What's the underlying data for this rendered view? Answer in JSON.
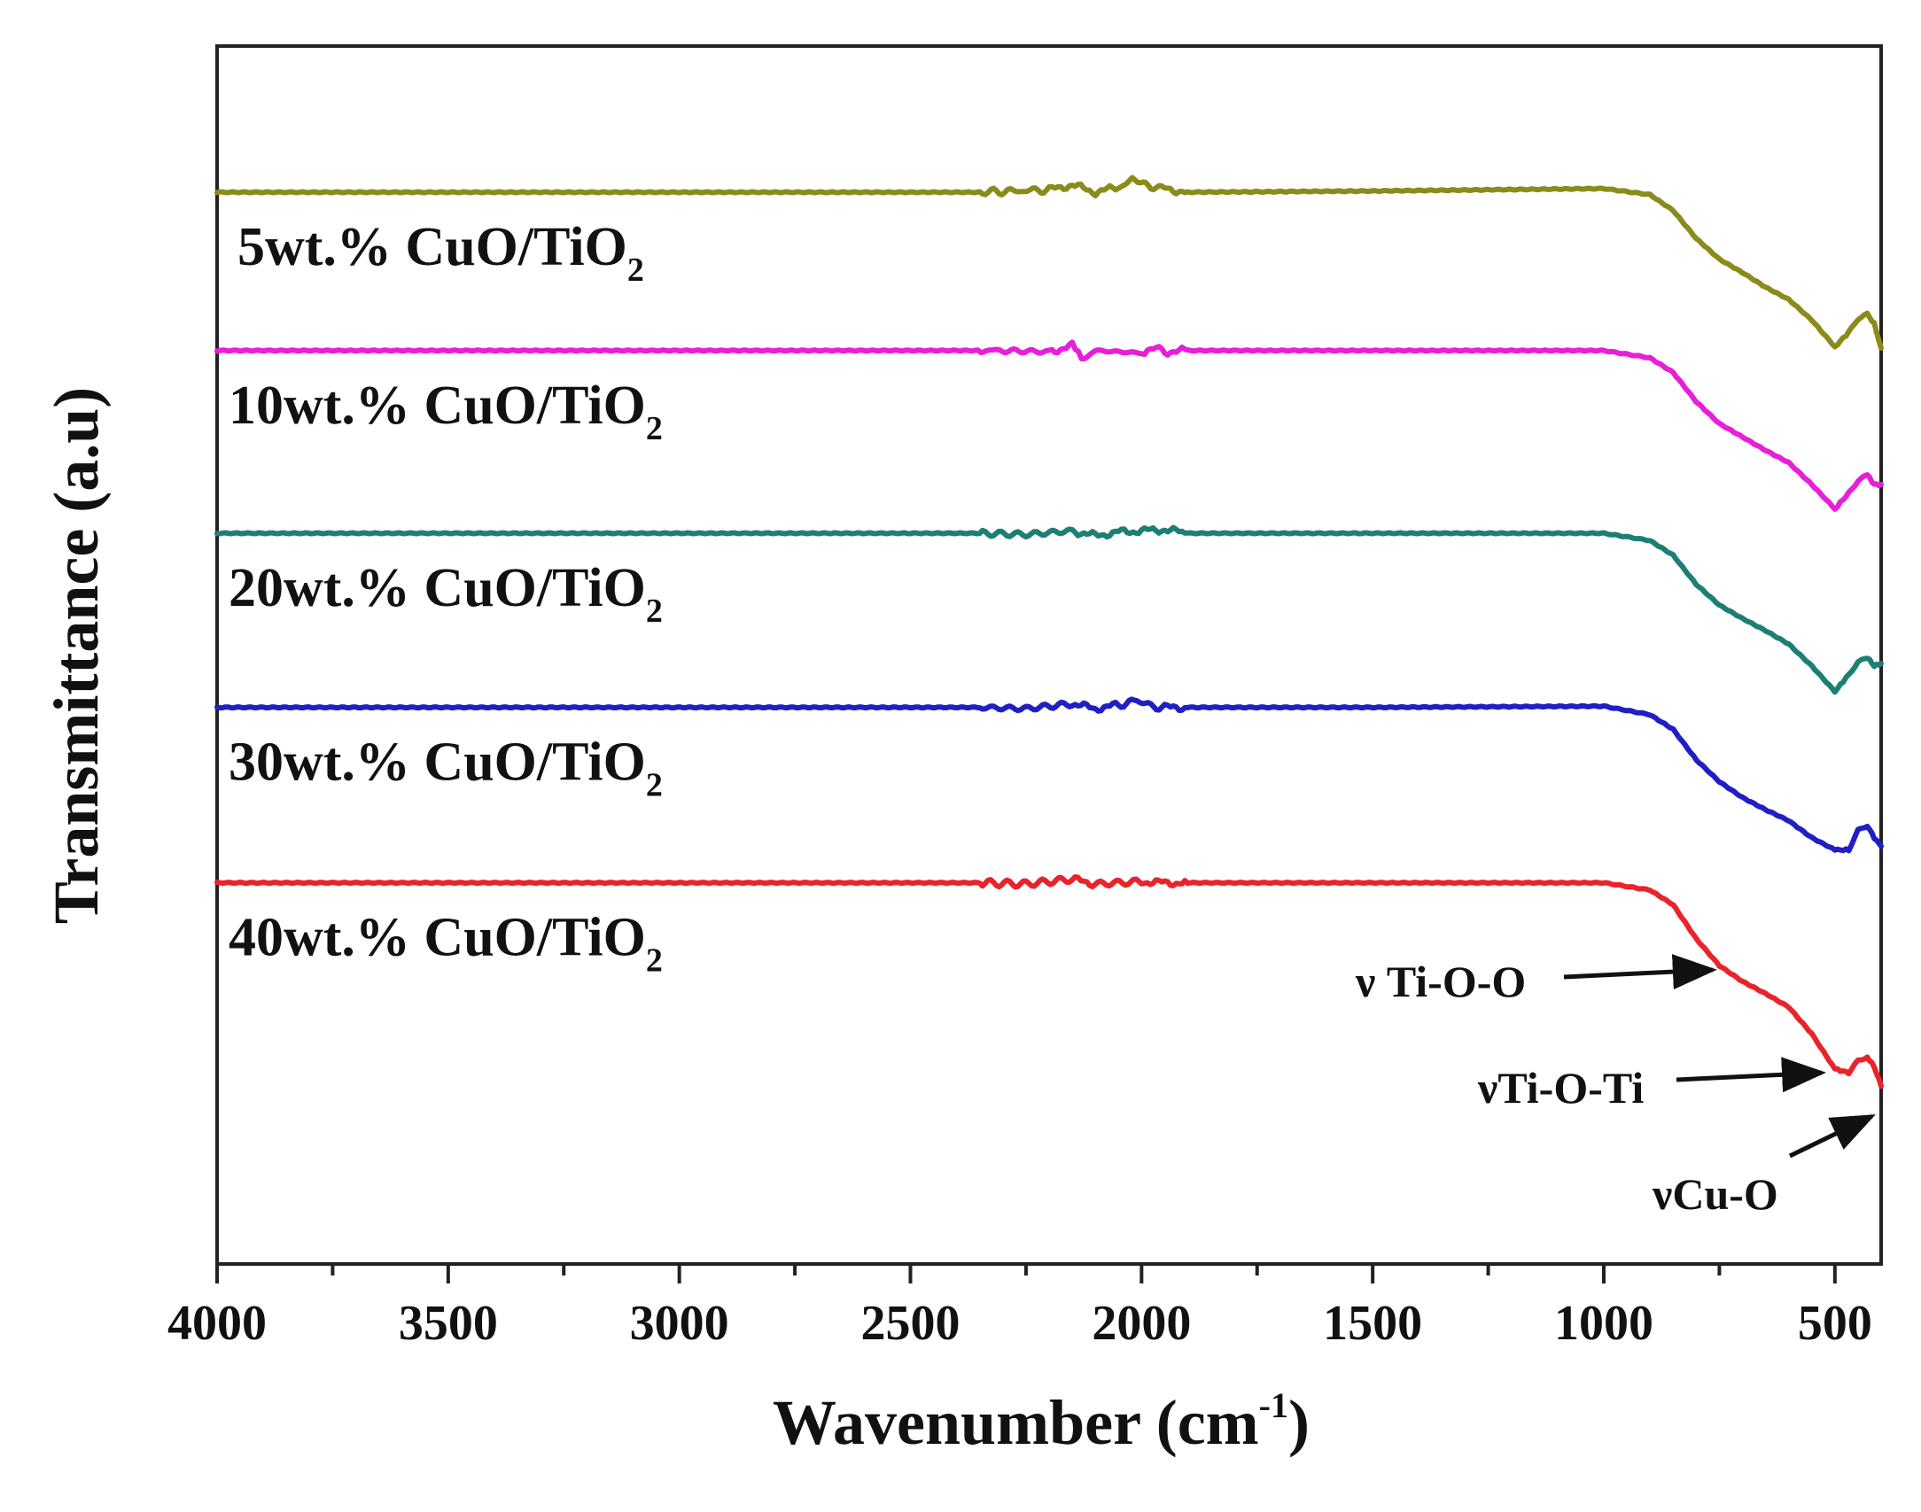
{
  "chart_data": {
    "type": "line",
    "title": "",
    "xlabel": "Wavenumber (cm",
    "xlabel_sup": "-1",
    "xlabel_close": ")",
    "ylabel": "Transmittance (a.u)",
    "xlim": [
      4000,
      400
    ],
    "x_reversed": true,
    "y_units": "arbitrary (stacked offsets)",
    "ylim": [
      0,
      100
    ],
    "grid": false,
    "x_ticks": [
      {
        "value": 4000,
        "label": "4000"
      },
      {
        "value": 3500,
        "label": "3500"
      },
      {
        "value": 3000,
        "label": "3000"
      },
      {
        "value": 2500,
        "label": "2500"
      },
      {
        "value": 2000,
        "label": "2000"
      },
      {
        "value": 1500,
        "label": "1500"
      },
      {
        "value": 1000,
        "label": "1000"
      },
      {
        "value": 500,
        "label": "500"
      }
    ],
    "x_minor_ticks": [
      3750,
      3250,
      2750,
      2250,
      1750,
      1250,
      750
    ],
    "series": [
      {
        "name": "5wt.% CuO/TiO2",
        "label_main": "5wt.% CuO/TiO",
        "label_sub": "2",
        "color": "#8b8b1c",
        "baseline": 88,
        "points": [
          [
            4000,
            88.0
          ],
          [
            3000,
            88.0
          ],
          [
            2350,
            88.0
          ],
          [
            2200,
            88.2
          ],
          [
            2150,
            88.6
          ],
          [
            2100,
            88.0
          ],
          [
            2050,
            88.4
          ],
          [
            2020,
            89.0
          ],
          [
            1980,
            88.5
          ],
          [
            1950,
            88.3
          ],
          [
            1900,
            88.0
          ],
          [
            1500,
            88.1
          ],
          [
            1000,
            88.3
          ],
          [
            900,
            87.8
          ],
          [
            850,
            86.5
          ],
          [
            800,
            84.2
          ],
          [
            750,
            82.5
          ],
          [
            700,
            81.4
          ],
          [
            650,
            80.2
          ],
          [
            600,
            79.2
          ],
          [
            550,
            77.5
          ],
          [
            500,
            75.3
          ],
          [
            470,
            76.5
          ],
          [
            450,
            77.6
          ],
          [
            430,
            78.0
          ],
          [
            415,
            77.2
          ],
          [
            400,
            75.2
          ]
        ]
      },
      {
        "name": "10wt.% CuO/TiO2",
        "label_main": "10wt.% CuO/TiO",
        "label_sub": "2",
        "color": "#e81ed8",
        "baseline": 75,
        "points": [
          [
            4000,
            75.0
          ],
          [
            3000,
            75.0
          ],
          [
            2300,
            75.0
          ],
          [
            2200,
            74.9
          ],
          [
            2150,
            75.4
          ],
          [
            2130,
            74.3
          ],
          [
            2100,
            75.0
          ],
          [
            2000,
            74.8
          ],
          [
            1980,
            75.3
          ],
          [
            1950,
            74.9
          ],
          [
            1900,
            75.0
          ],
          [
            1500,
            75.0
          ],
          [
            1000,
            75.0
          ],
          [
            900,
            74.4
          ],
          [
            850,
            73.2
          ],
          [
            800,
            70.8
          ],
          [
            750,
            69.0
          ],
          [
            700,
            67.9
          ],
          [
            650,
            66.8
          ],
          [
            600,
            65.8
          ],
          [
            550,
            64.0
          ],
          [
            500,
            62.0
          ],
          [
            470,
            63.3
          ],
          [
            450,
            64.3
          ],
          [
            430,
            64.8
          ],
          [
            415,
            64.0
          ],
          [
            400,
            64.0
          ]
        ]
      },
      {
        "name": "20wt.% CuO/TiO2",
        "label_main": "20wt.% CuO/TiO",
        "label_sub": "2",
        "color": "#1d7f74",
        "baseline": 60,
        "points": [
          [
            4000,
            60.0
          ],
          [
            3000,
            60.0
          ],
          [
            2350,
            60.0
          ],
          [
            2250,
            59.9
          ],
          [
            2150,
            60.2
          ],
          [
            2100,
            59.8
          ],
          [
            2050,
            60.1
          ],
          [
            2000,
            60.2
          ],
          [
            1950,
            60.3
          ],
          [
            1900,
            60.0
          ],
          [
            1500,
            60.0
          ],
          [
            1000,
            60.0
          ],
          [
            900,
            59.4
          ],
          [
            850,
            58.2
          ],
          [
            800,
            55.8
          ],
          [
            750,
            54.1
          ],
          [
            700,
            53.0
          ],
          [
            650,
            52.0
          ],
          [
            600,
            50.9
          ],
          [
            550,
            49.1
          ],
          [
            500,
            47.0
          ],
          [
            470,
            48.4
          ],
          [
            450,
            49.4
          ],
          [
            430,
            49.8
          ],
          [
            415,
            49.1
          ],
          [
            400,
            49.3
          ]
        ]
      },
      {
        "name": "30wt.% CuO/TiO2",
        "label_main": "30wt.% CuO/TiO",
        "label_sub": "2",
        "color": "#1f1fc4",
        "baseline": 45.7,
        "points": [
          [
            4000,
            45.7
          ],
          [
            3000,
            45.7
          ],
          [
            2350,
            45.7
          ],
          [
            2250,
            45.6
          ],
          [
            2150,
            46.0
          ],
          [
            2100,
            45.6
          ],
          [
            2050,
            45.9
          ],
          [
            2010,
            46.3
          ],
          [
            1980,
            45.8
          ],
          [
            1950,
            45.7
          ],
          [
            1900,
            45.7
          ],
          [
            1500,
            45.7
          ],
          [
            1000,
            45.8
          ],
          [
            900,
            45.1
          ],
          [
            850,
            43.9
          ],
          [
            800,
            41.4
          ],
          [
            750,
            39.6
          ],
          [
            700,
            38.3
          ],
          [
            650,
            37.3
          ],
          [
            600,
            36.4
          ],
          [
            550,
            35.0
          ],
          [
            500,
            34.0
          ],
          [
            470,
            34.0
          ],
          [
            450,
            35.6
          ],
          [
            430,
            36.0
          ],
          [
            415,
            35.0
          ],
          [
            400,
            34.3
          ]
        ]
      },
      {
        "name": "40wt.% CuO/TiO2",
        "label_main": "40wt.% CuO/TiO",
        "label_sub": "2",
        "color": "#e8242a",
        "baseline": 31.3,
        "points": [
          [
            4000,
            31.3
          ],
          [
            3000,
            31.3
          ],
          [
            2350,
            31.3
          ],
          [
            2250,
            31.2
          ],
          [
            2150,
            31.6
          ],
          [
            2100,
            31.2
          ],
          [
            2000,
            31.4
          ],
          [
            1950,
            31.3
          ],
          [
            1900,
            31.3
          ],
          [
            1500,
            31.3
          ],
          [
            1000,
            31.3
          ],
          [
            900,
            30.7
          ],
          [
            850,
            29.5
          ],
          [
            800,
            26.7
          ],
          [
            750,
            24.5
          ],
          [
            700,
            23.2
          ],
          [
            650,
            22.2
          ],
          [
            600,
            21.1
          ],
          [
            550,
            18.9
          ],
          [
            500,
            16.0
          ],
          [
            470,
            15.7
          ],
          [
            450,
            16.7
          ],
          [
            430,
            17.0
          ],
          [
            415,
            16.2
          ],
          [
            400,
            14.6
          ]
        ]
      }
    ],
    "annotations": [
      {
        "label": "ν Ti-O-O",
        "target_x": 730,
        "target_y": 24.0
      },
      {
        "label": "νTi-O-Ti",
        "target_x": 490,
        "target_y": 15.7
      },
      {
        "label": "νCu-O",
        "target_x": 405,
        "target_y": 13.0
      }
    ]
  }
}
